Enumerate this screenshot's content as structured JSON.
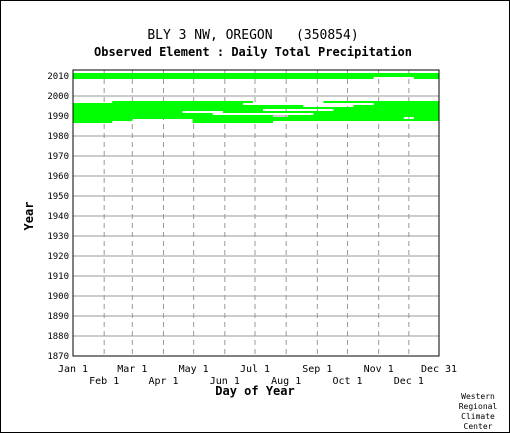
{
  "chart_data": {
    "type": "scatter",
    "title": "BLY 3 NW, OREGON   (350854)",
    "subtitle": "Observed Element : Daily Total Precipitation",
    "xlabel": "Day of Year",
    "ylabel": "Year",
    "xlim": [
      1,
      365
    ],
    "ylim": [
      1870,
      2013
    ],
    "grid": true,
    "y_ticks": [
      1870,
      1880,
      1890,
      1900,
      1910,
      1920,
      1930,
      1940,
      1950,
      1960,
      1970,
      1980,
      1990,
      2000,
      2010
    ],
    "x_ticks_upper": [
      {
        "label": "Jan 1",
        "day": 1
      },
      {
        "label": "Mar 1",
        "day": 60
      },
      {
        "label": "May 1",
        "day": 121
      },
      {
        "label": "Jul 1",
        "day": 182
      },
      {
        "label": "Sep 1",
        "day": 244
      },
      {
        "label": "Nov 1",
        "day": 305
      },
      {
        "label": "Dec 31",
        "day": 365
      }
    ],
    "x_ticks_lower": [
      {
        "label": "Feb 1",
        "day": 32
      },
      {
        "label": "Apr 1",
        "day": 91
      },
      {
        "label": "Jun 1",
        "day": 152
      },
      {
        "label": "Aug 1",
        "day": 213
      },
      {
        "label": "Oct 1",
        "day": 274
      },
      {
        "label": "Dec 1",
        "day": 335
      }
    ],
    "series_color": "#00ff00",
    "full_years": [
      1988,
      1989,
      1990,
      1991,
      1992,
      1993,
      1994,
      1995,
      1996,
      2009,
      2010
    ],
    "gaps": [
      {
        "year": 1996,
        "from": 170,
        "to": 300
      },
      {
        "year": 1995,
        "from": 230,
        "to": 280
      },
      {
        "year": 1993,
        "from": 190,
        "to": 260
      },
      {
        "year": 1992,
        "from": 110,
        "to": 150
      },
      {
        "year": 1991,
        "from": 140,
        "to": 240
      },
      {
        "year": 1990,
        "from": 200,
        "to": 215
      },
      {
        "year": 1989,
        "from": 330,
        "to": 340
      },
      {
        "year": 1988,
        "from": 60,
        "to": 120
      },
      {
        "year": 2009,
        "from": 300,
        "to": 340
      }
    ],
    "partial_years": [
      {
        "year": 1997,
        "from": 40,
        "to": 180
      },
      {
        "year": 1997,
        "from": 250,
        "to": 365
      },
      {
        "year": 1987,
        "from": 1,
        "to": 40
      },
      {
        "year": 1987,
        "from": 120,
        "to": 200
      },
      {
        "year": 2011,
        "from": 1,
        "to": 365
      }
    ]
  },
  "credit": [
    "Western",
    "Regional",
    "Climate",
    "Center"
  ]
}
